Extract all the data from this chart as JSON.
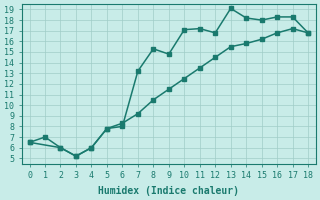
{
  "xlabel": "Humidex (Indice chaleur)",
  "bg_color": "#c8ece8",
  "line_color": "#1a7a6e",
  "grid_color": "#a0cdc8",
  "xlim": [
    -0.5,
    18.5
  ],
  "ylim": [
    4.5,
    19.5
  ],
  "xticks": [
    0,
    1,
    2,
    3,
    4,
    5,
    6,
    7,
    8,
    9,
    10,
    11,
    12,
    13,
    14,
    15,
    16,
    17,
    18
  ],
  "yticks": [
    5,
    6,
    7,
    8,
    9,
    10,
    11,
    12,
    13,
    14,
    15,
    16,
    17,
    18,
    19
  ],
  "line1_x": [
    0,
    1,
    2,
    3,
    4,
    5,
    6,
    7,
    8,
    9,
    10,
    11,
    12,
    13,
    14,
    15,
    16,
    17,
    18
  ],
  "line1_y": [
    6.5,
    7.0,
    6.0,
    5.2,
    6.0,
    7.8,
    8.0,
    13.2,
    15.3,
    14.8,
    17.1,
    17.2,
    16.8,
    19.1,
    18.2,
    18.0,
    18.3,
    18.3,
    16.8
  ],
  "line2_x": [
    0,
    2,
    3,
    4,
    5,
    6,
    7,
    8,
    9,
    10,
    11,
    12,
    13,
    14,
    15,
    16,
    17,
    18
  ],
  "line2_y": [
    6.5,
    6.0,
    5.2,
    6.0,
    7.8,
    8.3,
    9.2,
    10.5,
    11.5,
    12.5,
    13.5,
    14.5,
    15.5,
    15.8,
    16.2,
    16.8,
    17.2,
    16.8
  ],
  "marker_size": 3.0,
  "linewidth": 1.1,
  "tick_fontsize": 6.0,
  "label_fontsize": 7.0
}
